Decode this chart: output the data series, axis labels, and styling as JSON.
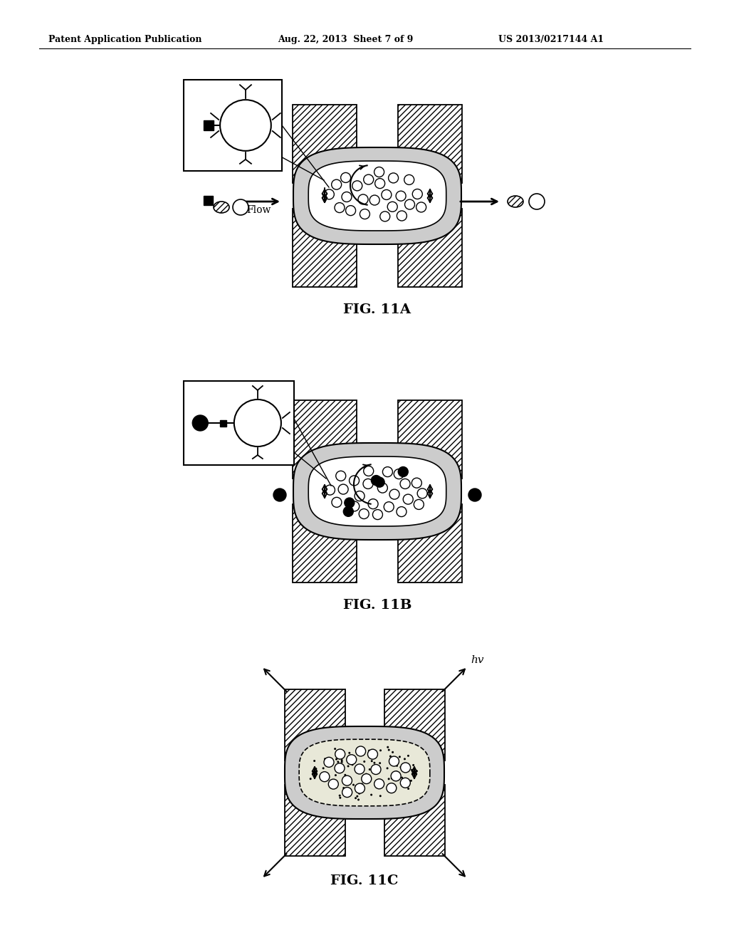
{
  "title_left": "Patent Application Publication",
  "title_mid": "Aug. 22, 2013  Sheet 7 of 9",
  "title_right": "US 2013/0217144 A1",
  "fig_labels": [
    "FIG. 11A",
    "FIG. 11B",
    "FIG. 11C"
  ],
  "bg_color": "#ffffff",
  "hatch_color": "#000000",
  "line_color": "#000000"
}
